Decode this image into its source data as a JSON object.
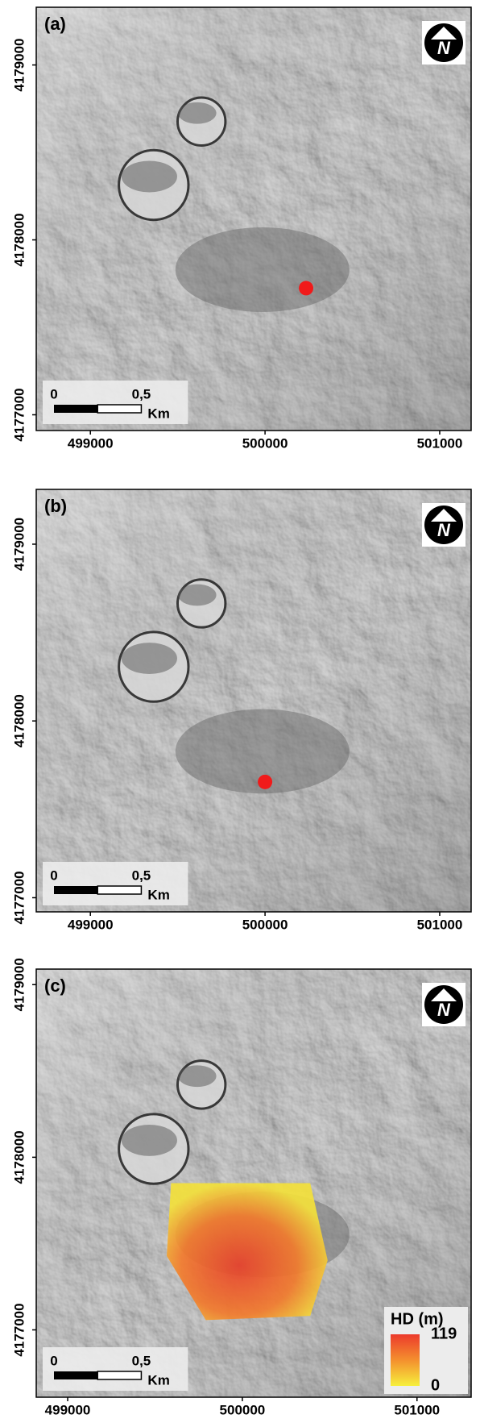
{
  "panels": [
    {
      "label": "(a)",
      "xlim": [
        498690,
        501180
      ],
      "ylim": [
        4176910,
        4179330
      ],
      "xticks": [
        499000,
        500000,
        501000
      ],
      "yticks": [
        4177000,
        4178000,
        4179000
      ],
      "vent": {
        "x": 500235,
        "y": 4177724
      }
    },
    {
      "label": "(b)",
      "xlim": [
        498690,
        501180
      ],
      "ylim": [
        4176920,
        4179310
      ],
      "xticks": [
        499000,
        500000,
        501000
      ],
      "yticks": [
        4177000,
        4178000,
        4179000
      ],
      "vent": {
        "x": 500000,
        "y": 4177655
      }
    },
    {
      "label": "(c)",
      "xlim": [
        498820,
        501310
      ],
      "ylim": [
        4176610,
        4179090
      ],
      "xticks": [
        499000,
        500000,
        501000
      ],
      "yticks": [
        4177000,
        4178000,
        4179000
      ]
    }
  ],
  "north_label": "N",
  "scale_bar": {
    "ticks": [
      {
        "value": 0,
        "label": "0"
      },
      {
        "value": 0.5,
        "label": "0,5"
      }
    ],
    "unit": "Km"
  },
  "legend": {
    "title": "HD (m)",
    "max": 119,
    "min": 0
  }
}
